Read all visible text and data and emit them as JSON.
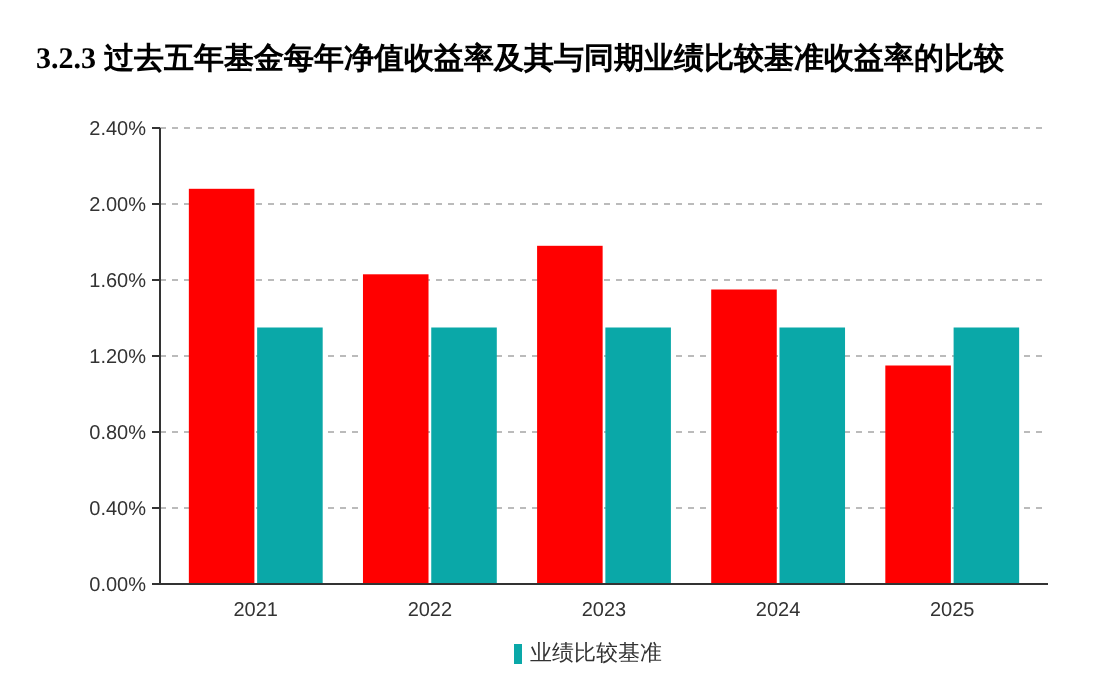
{
  "chart_data": {
    "type": "bar",
    "title": "3.2.3 过去五年基金每年净值收益率及其与同期业绩比较基准收益率的比较",
    "categories": [
      "2021",
      "2022",
      "2023",
      "2024",
      "2025"
    ],
    "series": [
      {
        "color": "#ff0000",
        "values": [
          2.08,
          1.63,
          1.78,
          1.55,
          1.15
        ]
      },
      {
        "name": "业绩比较基准",
        "color": "#0aa8a8",
        "values": [
          1.35,
          1.35,
          1.35,
          1.35,
          1.35
        ]
      }
    ],
    "ylim": [
      0,
      2.4
    ],
    "yticks": [
      {
        "value": 0,
        "label": "0.00%"
      },
      {
        "value": 0.4,
        "label": "0.40%"
      },
      {
        "value": 0.8,
        "label": "0.80%"
      },
      {
        "value": 1.2,
        "label": "1.20%"
      },
      {
        "value": 1.6,
        "label": "1.60%"
      },
      {
        "value": 2.0,
        "label": "2.00%"
      },
      {
        "value": 2.4,
        "label": "2.40%"
      }
    ],
    "grid": "y",
    "legend": "bottom"
  }
}
